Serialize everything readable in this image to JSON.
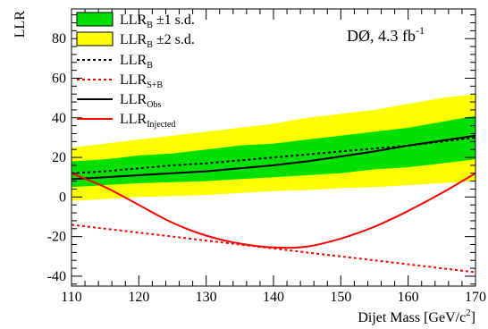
{
  "chart_data": {
    "type": "line",
    "title": "",
    "xlabel": "Dijet Mass [GeV/c",
    "xlabel_sup": "2",
    "xlabel_end": "]",
    "ylabel": "LLR",
    "xlim": [
      110,
      170
    ],
    "ylim": [
      -45,
      95
    ],
    "x_ticks": [
      110,
      120,
      130,
      140,
      150,
      160,
      170
    ],
    "y_ticks": [
      -40,
      -20,
      0,
      20,
      40,
      60,
      80
    ],
    "grid": false,
    "legend_placement": "top-left",
    "annotation": {
      "main": "DØ, 4.3 fb",
      "sup": "-1"
    },
    "legend": [
      {
        "key": "band1",
        "main": "LLR",
        "sub": "B",
        "suffix": "  ±1 s.d."
      },
      {
        "key": "band2",
        "main": "LLR",
        "sub": "B",
        "suffix": "  ±2 s.d."
      },
      {
        "key": "llr_b",
        "main": "LLR",
        "sub": "B",
        "suffix": ""
      },
      {
        "key": "llr_sb",
        "main": "LLR",
        "sub": "S+B",
        "suffix": ""
      },
      {
        "key": "llr_obs",
        "main": "LLR",
        "sub": "Obs",
        "suffix": ""
      },
      {
        "key": "llr_inj",
        "main": "LLR",
        "sub": "Injected",
        "suffix": ""
      }
    ],
    "x": [
      110,
      115,
      120,
      125,
      130,
      135,
      140,
      145,
      150,
      155,
      160,
      165,
      170
    ],
    "bands": {
      "two_sigma": {
        "lower": [
          -2,
          -1,
          0,
          0.5,
          1,
          2,
          3,
          3.5,
          4.5,
          5,
          6,
          7,
          8
        ],
        "upper": [
          25,
          27,
          29,
          31,
          33,
          35,
          37,
          40,
          42,
          44,
          47,
          50,
          52
        ]
      },
      "one_sigma": {
        "lower": [
          5,
          6,
          7,
          7.5,
          8,
          9,
          10,
          11,
          12,
          14,
          15,
          17,
          19
        ],
        "upper": [
          18,
          19,
          21,
          22,
          24,
          26,
          27,
          29,
          31,
          33,
          35,
          38,
          41
        ]
      }
    },
    "series": [
      {
        "key": "llr_b",
        "name": "LLR_B",
        "values": [
          12,
          13,
          14.5,
          16,
          17,
          18.5,
          20,
          21.5,
          23,
          24.5,
          26,
          28,
          30
        ]
      },
      {
        "key": "llr_sb",
        "name": "LLR_S+B",
        "values": [
          -14,
          -16,
          -18,
          -20,
          -22,
          -24,
          -26,
          -28,
          -30,
          -32,
          -34,
          -36,
          -38
        ]
      },
      {
        "key": "llr_obs",
        "name": "LLR_Obs",
        "values": [
          9,
          10,
          11,
          12,
          13,
          14.5,
          16,
          18,
          20.5,
          23,
          26,
          28.5,
          31
        ]
      },
      {
        "key": "llr_inj",
        "name": "LLR_Injected",
        "values": [
          12,
          5,
          -4,
          -13,
          -19.5,
          -23.5,
          -25.5,
          -25,
          -21,
          -15,
          -7,
          2,
          12
        ]
      }
    ],
    "colors": {
      "two_sigma": "#ffff00",
      "one_sigma": "#00e000",
      "llr_b": "#000000",
      "llr_sb": "#ff0000",
      "llr_obs": "#000000",
      "llr_inj": "#ff0000"
    }
  }
}
